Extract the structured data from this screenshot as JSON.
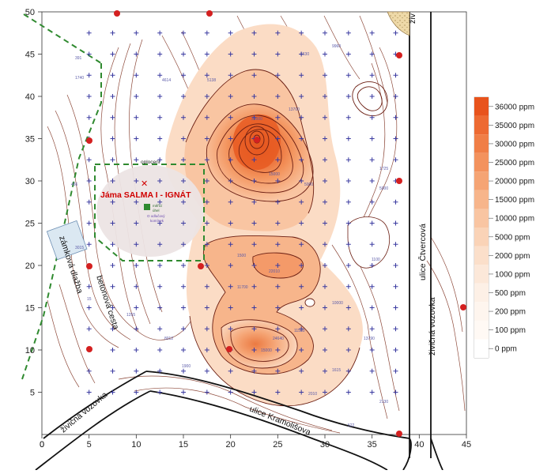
{
  "axes": {
    "x_ticks": [
      "0",
      "5",
      "10",
      "15",
      "20",
      "25",
      "30",
      "35",
      "40",
      "45"
    ],
    "y_ticks": [
      "5",
      "10",
      "15",
      "20",
      "25",
      "30",
      "35",
      "40",
      "45",
      "50"
    ]
  },
  "legend": {
    "items": [
      {
        "label": "36000 ppm",
        "color": "#e8531c"
      },
      {
        "label": "35000 ppm",
        "color": "#ed6a32"
      },
      {
        "label": "30000 ppm",
        "color": "#f07e46"
      },
      {
        "label": "25000 ppm",
        "color": "#f3925d"
      },
      {
        "label": "20000 ppm",
        "color": "#f5a474"
      },
      {
        "label": "15000 ppm",
        "color": "#f7b58b"
      },
      {
        "label": "10000 ppm",
        "color": "#f9c5a2"
      },
      {
        "label": "5000 ppm",
        "color": "#fad3b7"
      },
      {
        "label": "2000 ppm",
        "color": "#fbdfca"
      },
      {
        "label": "1000 ppm",
        "color": "#fce8d9"
      },
      {
        "label": "500 ppm",
        "color": "#fdf0e6"
      },
      {
        "label": "200 ppm",
        "color": "#fef5ee"
      },
      {
        "label": "100 ppm",
        "color": "#fff9f4"
      },
      {
        "label": "0 ppm",
        "color": "#ffffff"
      }
    ]
  },
  "labels": {
    "shaft": "Jáma SALMA I - IGNÁT",
    "oploceni": "oplocení",
    "zamkova_dlazba": "zámková dlažba",
    "betonova_cesta": "betonová cesta",
    "zivicna_vozovka_left": "živičná vozovka",
    "zivicna_vozovka_right": "živičná vozovka",
    "ulice_cvercova": "ulice Čtvercová",
    "ulice_kramolisova": "ulice Kramolišova",
    "zv_corner": "živ",
    "legend_key_1": "měřicí",
    "legend_key_2": "úhel",
    "legend_key_3": "O odlučový",
    "legend_key_4": "komínek"
  },
  "colors": {
    "accent_red": "#d00000",
    "contour_line": "#6b1e12",
    "grid_blue": "#3a3aa0",
    "fence_green": "#2f8a2f",
    "road_line": "#111111"
  },
  "chart_data": {
    "type": "heatmap",
    "title": "",
    "xlabel": "",
    "ylabel": "",
    "xlim": [
      0,
      45
    ],
    "ylim": [
      0,
      50
    ],
    "legend_placement": "right",
    "grid": false
  }
}
